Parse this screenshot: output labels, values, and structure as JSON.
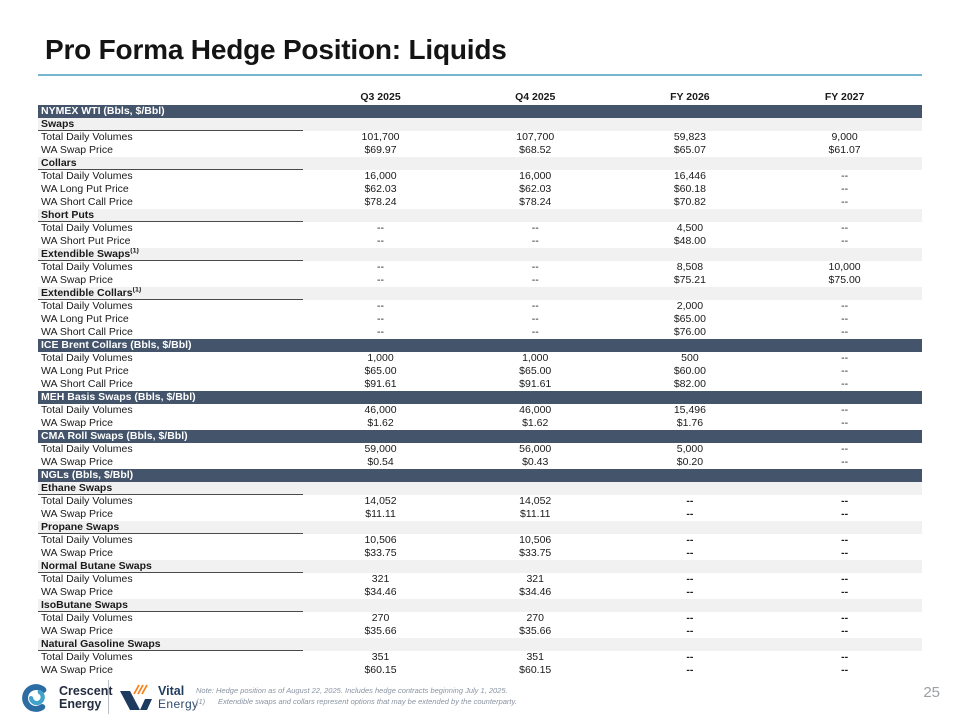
{
  "slide": {
    "title": "Pro Forma Hedge Position: Liquids",
    "page_number": "25"
  },
  "colors": {
    "section_header_bg": "#44546A",
    "section_header_text": "#FFFFFF",
    "subsection_bg": "#F1F1F2",
    "title_rule_blue": "#74B7CF",
    "crescent_blue_dark": "#2B6CA3",
    "crescent_blue_light": "#41A3CC",
    "vital_navy": "#1D3A5F",
    "vital_orange": "#F5821F",
    "note_text": "#8A94A3",
    "page_number_gray": "#9AA0A6"
  },
  "table": {
    "columns": [
      "Q3 2025",
      "Q4 2025",
      "FY 2026",
      "FY 2027"
    ],
    "rows": [
      {
        "type": "section",
        "label": "NYMEX WTI (Bbls, $/Bbl)"
      },
      {
        "type": "subsection",
        "label": "Swaps"
      },
      {
        "type": "data",
        "label": "Total Daily Volumes",
        "values": [
          "101,700",
          "107,700",
          "59,823",
          "9,000"
        ]
      },
      {
        "type": "data",
        "label": "WA Swap Price",
        "values": [
          "$69.97",
          "$68.52",
          "$65.07",
          "$61.07"
        ]
      },
      {
        "type": "subsection",
        "label": "Collars"
      },
      {
        "type": "data",
        "label": "Total Daily Volumes",
        "values": [
          "16,000",
          "16,000",
          "16,446",
          "--"
        ]
      },
      {
        "type": "data",
        "label": "WA Long Put Price",
        "values": [
          "$62.03",
          "$62.03",
          "$60.18",
          "--"
        ]
      },
      {
        "type": "data",
        "label": "WA Short Call Price",
        "values": [
          "$78.24",
          "$78.24",
          "$70.82",
          "--"
        ]
      },
      {
        "type": "subsection",
        "label": "Short Puts"
      },
      {
        "type": "data",
        "label": "Total Daily Volumes",
        "values": [
          "--",
          "--",
          "4,500",
          "--"
        ]
      },
      {
        "type": "data",
        "label": "WA Short Put Price",
        "values": [
          "--",
          "--",
          "$48.00",
          "--"
        ]
      },
      {
        "type": "subsection",
        "label": "Extendible Swaps",
        "sup": "(1)"
      },
      {
        "type": "data",
        "label": "Total Daily Volumes",
        "values": [
          "--",
          "--",
          "8,508",
          "10,000"
        ]
      },
      {
        "type": "data",
        "label": "WA Swap Price",
        "values": [
          "--",
          "--",
          "$75.21",
          "$75.00"
        ]
      },
      {
        "type": "subsection",
        "label": "Extendible Collars",
        "sup": "(1)"
      },
      {
        "type": "data",
        "label": "Total Daily Volumes",
        "values": [
          "--",
          "--",
          "2,000",
          "--"
        ]
      },
      {
        "type": "data",
        "label": "WA Long Put Price",
        "values": [
          "--",
          "--",
          "$65.00",
          "--"
        ]
      },
      {
        "type": "data",
        "label": "WA Short Call Price",
        "values": [
          "--",
          "--",
          "$76.00",
          "--"
        ]
      },
      {
        "type": "section",
        "label": "ICE Brent Collars (Bbls, $/Bbl)"
      },
      {
        "type": "data",
        "label": "Total Daily Volumes",
        "values": [
          "1,000",
          "1,000",
          "500",
          "--"
        ]
      },
      {
        "type": "data",
        "label": "WA Long Put Price",
        "values": [
          "$65.00",
          "$65.00",
          "$60.00",
          "--"
        ]
      },
      {
        "type": "data",
        "label": "WA Short Call Price",
        "values": [
          "$91.61",
          "$91.61",
          "$82.00",
          "--"
        ]
      },
      {
        "type": "section",
        "label": "MEH Basis Swaps (Bbls, $/Bbl)"
      },
      {
        "type": "data",
        "label": "Total Daily Volumes",
        "values": [
          "46,000",
          "46,000",
          "15,496",
          "--"
        ]
      },
      {
        "type": "data",
        "label": "WA Swap Price",
        "values": [
          "$1.62",
          "$1.62",
          "$1.76",
          "--"
        ]
      },
      {
        "type": "section",
        "label": "CMA Roll Swaps (Bbls, $/Bbl)"
      },
      {
        "type": "data",
        "label": "Total Daily Volumes",
        "values": [
          "59,000",
          "56,000",
          "5,000",
          "--"
        ]
      },
      {
        "type": "data",
        "label": "WA Swap Price",
        "values": [
          "$0.54",
          "$0.43",
          "$0.20",
          "--"
        ]
      },
      {
        "type": "section",
        "label": "NGLs (Bbls, $/Bbl)"
      },
      {
        "type": "subsection",
        "label": "Ethane Swaps"
      },
      {
        "type": "data",
        "label": "Total Daily Volumes",
        "values": [
          "14,052",
          "14,052",
          "--",
          "--"
        ],
        "bold": [
          2,
          3
        ]
      },
      {
        "type": "data",
        "label": "WA Swap Price",
        "values": [
          "$11.11",
          "$11.11",
          "--",
          "--"
        ],
        "bold": [
          2,
          3
        ]
      },
      {
        "type": "subsection",
        "label": "Propane Swaps"
      },
      {
        "type": "data",
        "label": "Total Daily Volumes",
        "values": [
          "10,506",
          "10,506",
          "--",
          "--"
        ],
        "bold": [
          2,
          3
        ]
      },
      {
        "type": "data",
        "label": "WA Swap Price",
        "values": [
          "$33.75",
          "$33.75",
          "--",
          "--"
        ],
        "bold": [
          2,
          3
        ]
      },
      {
        "type": "subsection",
        "label": "Normal Butane Swaps"
      },
      {
        "type": "data",
        "label": "Total Daily Volumes",
        "values": [
          "321",
          "321",
          "--",
          "--"
        ],
        "bold": [
          2,
          3
        ]
      },
      {
        "type": "data",
        "label": "WA Swap Price",
        "values": [
          "$34.46",
          "$34.46",
          "--",
          "--"
        ],
        "bold": [
          2,
          3
        ]
      },
      {
        "type": "subsection",
        "label": "IsoButane Swaps"
      },
      {
        "type": "data",
        "label": "Total Daily Volumes",
        "values": [
          "270",
          "270",
          "--",
          "--"
        ],
        "bold": [
          2,
          3
        ]
      },
      {
        "type": "data",
        "label": "WA Swap Price",
        "values": [
          "$35.66",
          "$35.66",
          "--",
          "--"
        ],
        "bold": [
          2,
          3
        ]
      },
      {
        "type": "subsection",
        "label": "Natural Gasoline Swaps"
      },
      {
        "type": "data",
        "label": "Total Daily Volumes",
        "values": [
          "351",
          "351",
          "--",
          "--"
        ],
        "bold": [
          2,
          3
        ]
      },
      {
        "type": "data",
        "label": "WA Swap Price",
        "values": [
          "$60.15",
          "$60.15",
          "--",
          "--"
        ],
        "bold": [
          2,
          3
        ]
      }
    ]
  },
  "footer": {
    "crescent_logo": {
      "line1": "Crescent",
      "line2": "Energy"
    },
    "vital_logo": {
      "line1": "Vital",
      "line2": "Energy"
    },
    "note_line1": "Note: Hedge position as of August 22, 2025. Includes hedge contracts beginning July 1, 2025.",
    "footnote_marker": "(1)",
    "footnote_text": "Extendible swaps and collars represent options that may be extended by the counterparty."
  }
}
